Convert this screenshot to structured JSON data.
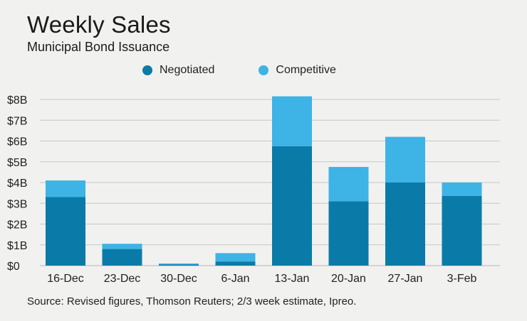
{
  "chart_data": {
    "type": "bar",
    "stacked": true,
    "title": "Weekly Sales",
    "subtitle": "Municipal Bond Issuance",
    "categories": [
      "16-Dec",
      "23-Dec",
      "30-Dec",
      "6-Jan",
      "13-Jan",
      "20-Jan",
      "27-Jan",
      "3-Feb"
    ],
    "series": [
      {
        "name": "Negotiated",
        "color": "#0a7ba8",
        "values": [
          3.3,
          0.8,
          0.05,
          0.2,
          5.75,
          3.1,
          4.0,
          3.35
        ]
      },
      {
        "name": "Competitive",
        "color": "#3db3e6",
        "values": [
          0.8,
          0.25,
          0.05,
          0.4,
          2.4,
          1.65,
          2.2,
          0.65
        ]
      }
    ],
    "ylim": [
      0,
      8
    ],
    "yticks": [
      0,
      1,
      2,
      3,
      4,
      5,
      6,
      7,
      8
    ],
    "ytick_labels": [
      "$0",
      "$1B",
      "$2B",
      "$3B",
      "$4B",
      "$5B",
      "$6B",
      "$7B",
      "$8B"
    ],
    "legend_position": "top-center",
    "grid": "horizontal",
    "source": "Source: Revised figures, Thomson Reuters; 2/3 week estimate, Ipreo."
  }
}
